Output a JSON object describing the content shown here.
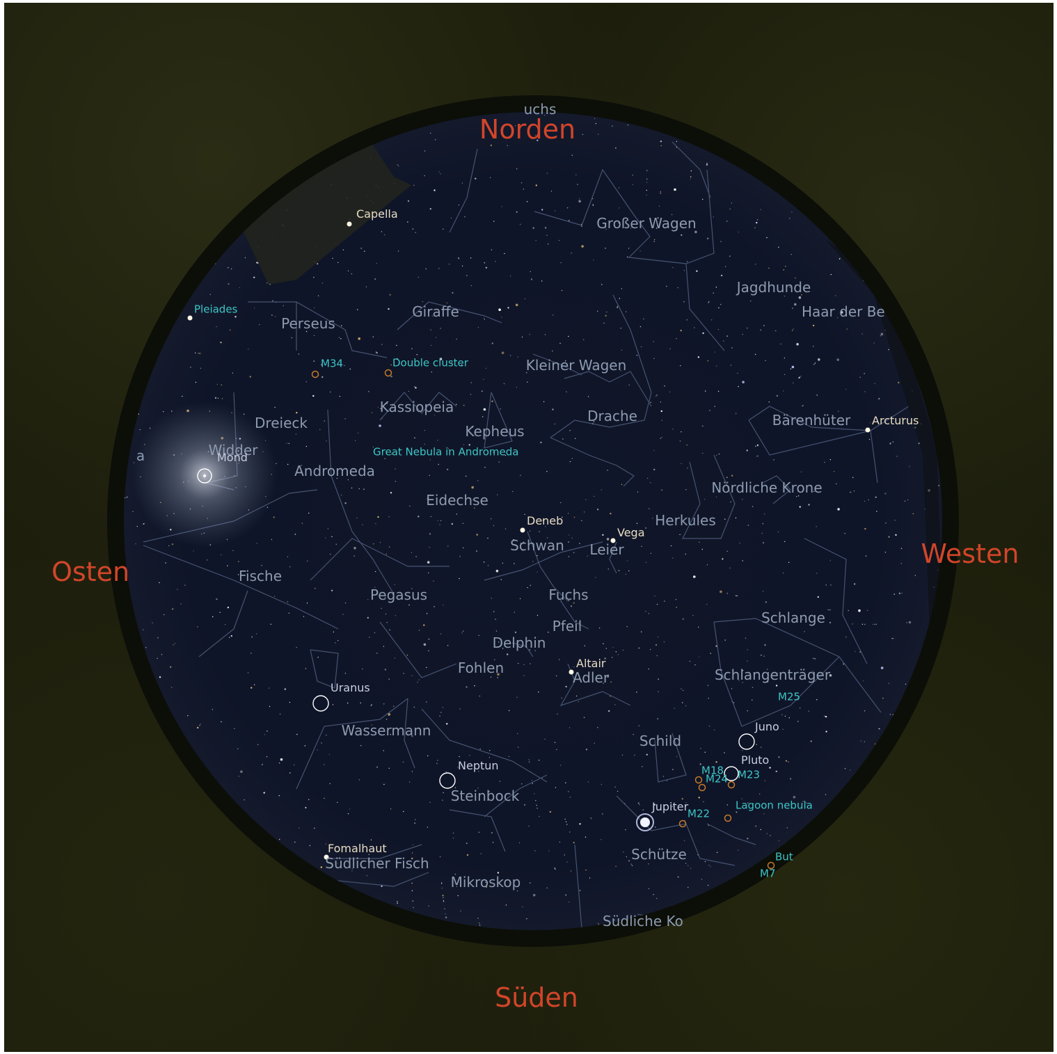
{
  "app": {
    "view_type": "all-sky planetarium view",
    "colors": {
      "ground": "#1c1e0c",
      "sky": "#0e1426",
      "cardinal_label": "#d2452a",
      "constellation_label": "#8d9bb0",
      "constellation_line": "#4f5f80",
      "dso_label": "#3cc6c6",
      "dso_marker": "#c67a2a",
      "planet_marker": "#ffffff"
    }
  },
  "cardinals": {
    "north": "Norden",
    "south": "Süden",
    "east": "Osten",
    "west": "Westen"
  },
  "constellations": {
    "fuchs_partial": "uchs",
    "grosser_wagen": "Großer Wagen",
    "jagdhunde": "Jagdhunde",
    "haar_der_berenike_partial": "Haar der Be",
    "giraffe": "Giraffe",
    "perseus": "Perseus",
    "kleiner_wagen": "Kleiner Wagen",
    "kassiopeia": "Kassiopeia",
    "dreieck": "Dreieck",
    "kepheus": "Kepheus",
    "drache": "Drache",
    "baerenhueter": "Bärenhüter",
    "widder": "Widder",
    "andromeda": "Andromeda",
    "eidechse": "Eidechse",
    "noerdliche_krone": "Nördliche Krone",
    "herkules": "Herkules",
    "schwan": "Schwan",
    "leier": "Leier",
    "fische": "Fische",
    "pegasus": "Pegasus",
    "fuchs": "Fuchs",
    "schlange": "Schlange",
    "pfeil": "Pfeil",
    "delphin": "Delphin",
    "fohlen": "Fohlen",
    "adler": "Adler",
    "schlangentraeger": "Schlangenträger",
    "wassermann": "Wassermann",
    "schild": "Schild",
    "steinbock": "Steinbock",
    "schuetze": "Schütze",
    "suedlicher_fisch": "Südlicher Fisch",
    "mikroskop": "Mikroskop",
    "suedliche_krone_partial": "Südliche Ko",
    "edge_a": "a"
  },
  "stars": {
    "capella": "Capella",
    "arcturus": "Arcturus",
    "deneb": "Deneb",
    "vega": "Vega",
    "altair": "Altair",
    "fomalhaut": "Fomalhaut"
  },
  "deep_sky": {
    "pleiades": "Pleiades",
    "m34": "M34",
    "double_cluster": "Double cluster",
    "andromeda_nebula": "Great Nebula in Andromeda",
    "m25": "M25",
    "m18": "M18",
    "m24": "M24",
    "m23": "M23",
    "m22": "M22",
    "lagoon": "Lagoon nebula",
    "butterfly_partial": "But",
    "m7_partial": "M7"
  },
  "planets": {
    "moon": "Mond",
    "uranus": "Uranus",
    "juno": "Juno",
    "pluto": "Pluto",
    "neptune": "Neptun",
    "jupiter": "Jupiter"
  }
}
